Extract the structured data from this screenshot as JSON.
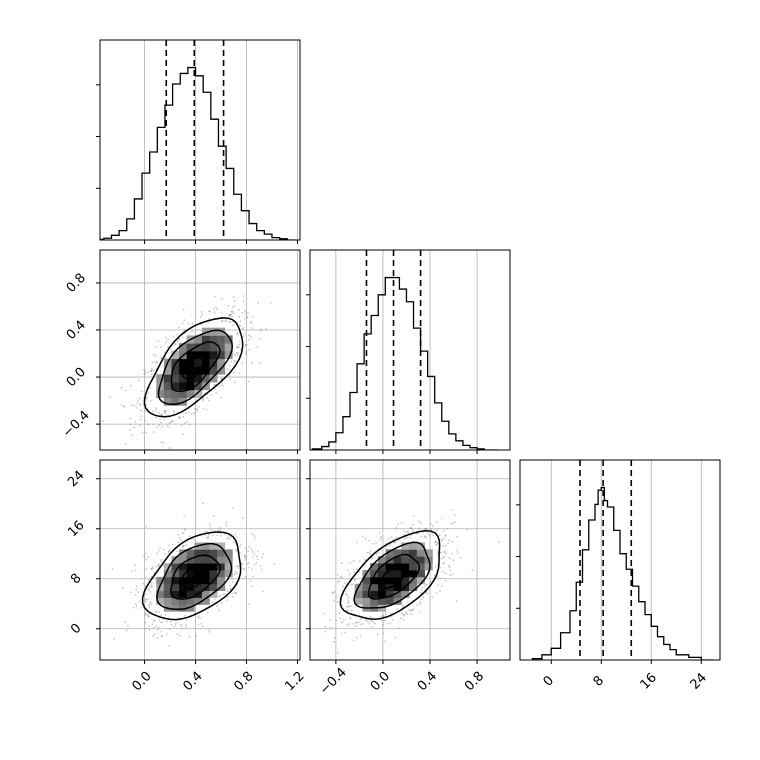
{
  "chart_data": {
    "type": "corner",
    "variables": 3,
    "colors": {
      "line": "#000000",
      "grid": "#b0b0b0",
      "frame": "#000000"
    },
    "grid": true,
    "var_limits": [
      [
        -0.35,
        1.22
      ],
      [
        -0.62,
        1.08
      ],
      [
        -5,
        27
      ]
    ],
    "ticks": [
      {
        "values": [
          0.0,
          0.4,
          0.8,
          1.2
        ],
        "labels": [
          "0.0",
          "0.4",
          "0.8",
          "1.2"
        ]
      },
      {
        "values": [
          -0.4,
          0.0,
          0.4,
          0.8
        ],
        "labels": [
          "−0.4",
          "0.0",
          "0.4",
          "0.8"
        ]
      },
      {
        "values": [
          0,
          8,
          16,
          24
        ],
        "labels": [
          "0",
          "8",
          "16",
          "24"
        ]
      }
    ],
    "histograms": [
      {
        "variable": 0,
        "bins": [
          -0.4,
          -0.32,
          -0.26,
          -0.2,
          -0.14,
          -0.08,
          -0.02,
          0.04,
          0.1,
          0.16,
          0.22,
          0.28,
          0.34,
          0.4,
          0.46,
          0.52,
          0.58,
          0.64,
          0.7,
          0.76,
          0.82,
          0.88,
          0.94,
          1.0,
          1.06,
          1.12,
          1.18
        ],
        "counts": [
          0.5,
          1.5,
          4,
          8,
          18,
          35,
          57,
          75,
          96,
          115,
          133,
          142,
          147,
          140,
          126,
          103,
          80,
          61,
          39,
          25,
          14,
          8,
          5,
          2,
          1,
          0
        ],
        "quantiles": [
          0.17,
          0.39,
          0.62
        ]
      },
      {
        "variable": 1,
        "bins": [
          -0.6,
          -0.52,
          -0.46,
          -0.4,
          -0.34,
          -0.28,
          -0.22,
          -0.16,
          -0.1,
          -0.04,
          0.02,
          0.08,
          0.14,
          0.2,
          0.26,
          0.32,
          0.38,
          0.44,
          0.5,
          0.56,
          0.62,
          0.68,
          0.74,
          0.8,
          0.86,
          0.92,
          0.98
        ],
        "counts": [
          1,
          3,
          7,
          15,
          29,
          50,
          75,
          101,
          117,
          135,
          150,
          150,
          140,
          129,
          106,
          86,
          64,
          41,
          25,
          14,
          8,
          4,
          2,
          1,
          0,
          0
        ],
        "quantiles": [
          -0.14,
          0.09,
          0.32
        ]
      },
      {
        "variable": 2,
        "bins": [
          -3,
          -1.5,
          0,
          1.5,
          3,
          4,
          5,
          6,
          7,
          7.5,
          8,
          8.5,
          9,
          10,
          11,
          12,
          13,
          14,
          15,
          16,
          17,
          18,
          19,
          20,
          22,
          24,
          26
        ],
        "counts": [
          1,
          4,
          9,
          21,
          38,
          60,
          85,
          108,
          120,
          131,
          133,
          123,
          118,
          100,
          82,
          70,
          57,
          45,
          35,
          26,
          18,
          12,
          8,
          4,
          2,
          0
        ],
        "quantiles": [
          4.6,
          8.3,
          12.8
        ]
      }
    ],
    "pairs": [
      {
        "x_var": 0,
        "y_var": 1,
        "mean": [
          0.39,
          0.09
        ],
        "sd": [
          0.19,
          0.21
        ],
        "rho": 0.62
      },
      {
        "x_var": 0,
        "y_var": 2,
        "mean": [
          0.39,
          8.3
        ],
        "sd": [
          0.19,
          3.5
        ],
        "rho": 0.45
      },
      {
        "x_var": 1,
        "y_var": 2,
        "mean": [
          0.09,
          8.3
        ],
        "sd": [
          0.21,
          3.5
        ],
        "rho": 0.55
      }
    ],
    "contour_levels_sigma": [
      0.5,
      1.0,
      1.5,
      2.0
    ]
  }
}
